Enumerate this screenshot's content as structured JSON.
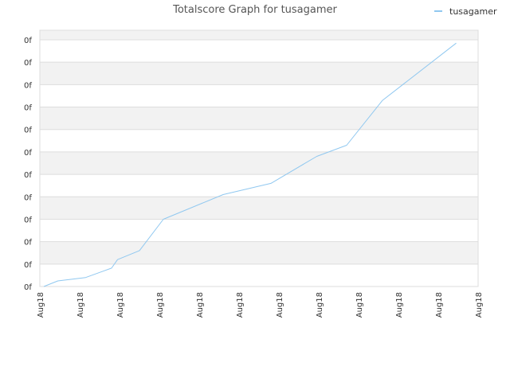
{
  "chart_data": {
    "type": "line",
    "title": "Totalscore Graph for tusagamer",
    "xlabel": "",
    "ylabel": "",
    "legend": {
      "position": "top-right"
    },
    "grid": true,
    "colors": {
      "line": "#90c8f0",
      "band": "#f2f2f2",
      "gridline": "#dddddd",
      "border": "#dddddd"
    },
    "y_tick_labels": [
      "0f",
      "0f",
      "0f",
      "0f",
      "0f",
      "0f",
      "0f",
      "0f",
      "0f",
      "0f",
      "0f",
      "0f"
    ],
    "x_tick_labels": [
      "Aug18",
      "Aug18",
      "Aug18",
      "Aug18",
      "Aug18",
      "Aug18",
      "Aug18",
      "Aug18",
      "Aug18",
      "Aug18",
      "Aug18",
      "Aug18"
    ],
    "xlim": [
      0,
      11
    ],
    "ylim": [
      0,
      11
    ],
    "series": [
      {
        "name": "tusagamer",
        "x": [
          0.1,
          0.45,
          1.15,
          1.8,
          1.95,
          2.5,
          3.1,
          4.6,
          5.8,
          6.95,
          7.7,
          8.6,
          10.45
        ],
        "y": [
          0.0,
          0.25,
          0.4,
          0.82,
          1.2,
          1.6,
          3.0,
          4.1,
          4.6,
          5.8,
          6.3,
          8.3,
          10.85
        ]
      }
    ]
  }
}
